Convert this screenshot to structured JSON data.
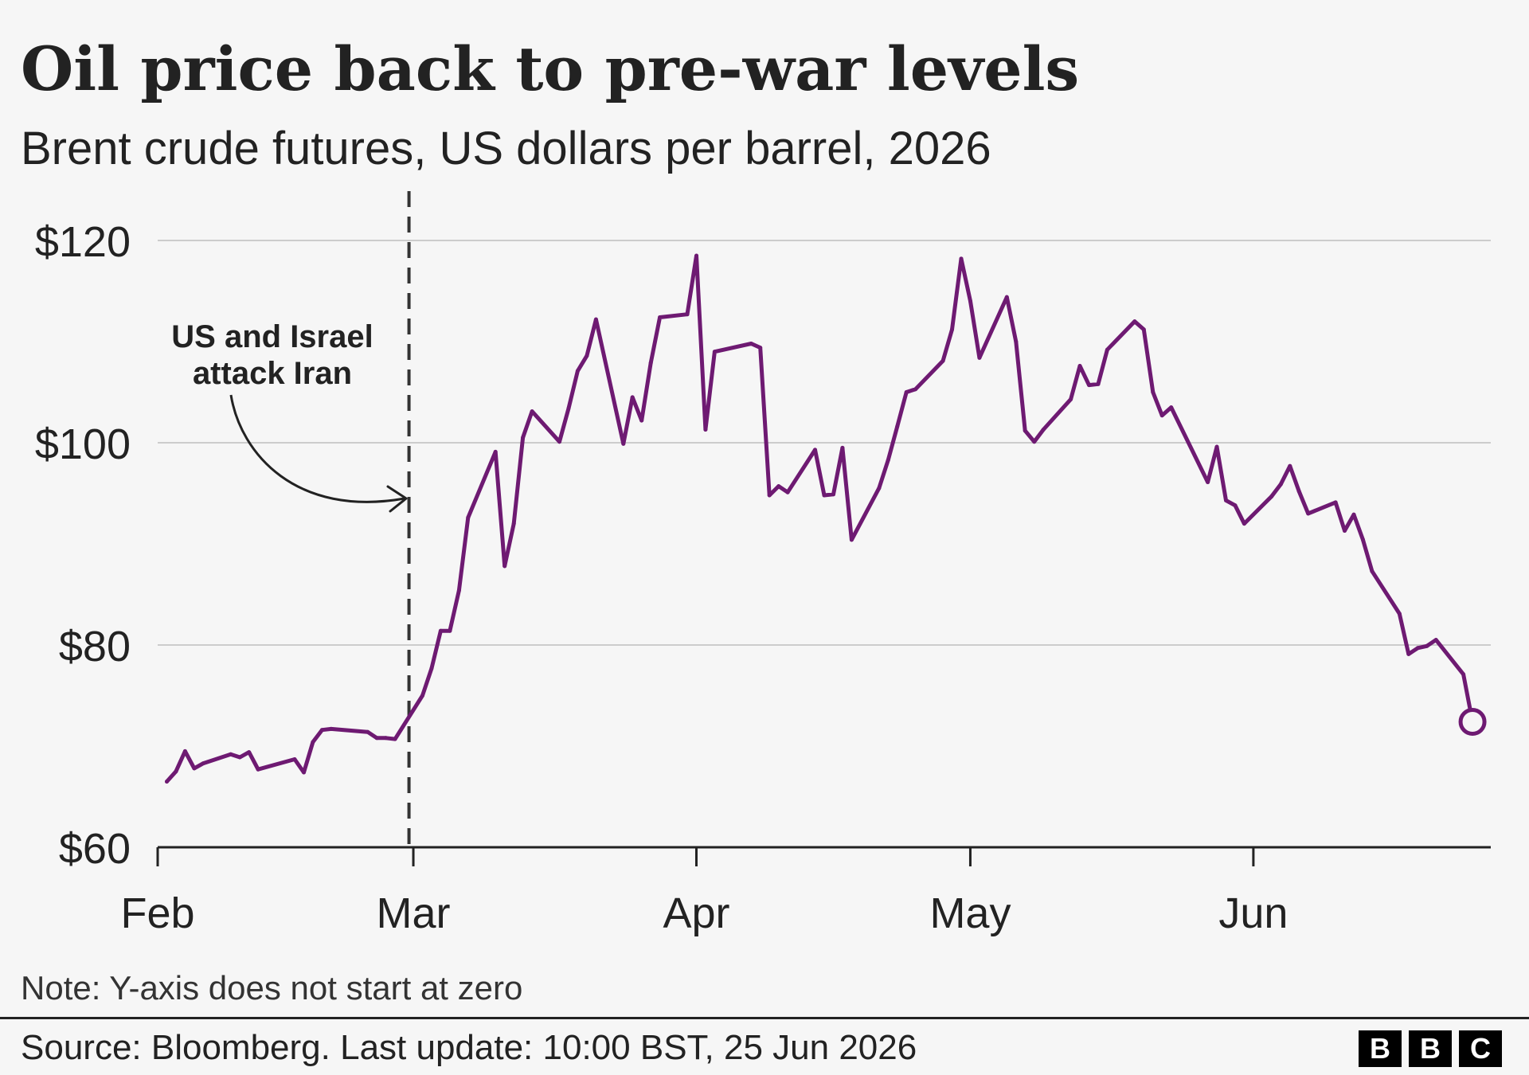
{
  "chart_data": {
    "type": "line",
    "title": "Oil price back to pre-war levels",
    "subtitle": "Brent crude futures, US dollars per barrel, 2026",
    "xlabel": "",
    "ylabel": "",
    "ylim": [
      60,
      120
    ],
    "yticks": [
      {
        "value": 120,
        "label": "$120"
      },
      {
        "value": 100,
        "label": "$100"
      },
      {
        "value": 80,
        "label": "$80"
      },
      {
        "value": 60,
        "label": "$60"
      }
    ],
    "xlim": [
      "2026-02-01",
      "2026-06-27"
    ],
    "xticks": [
      {
        "date": "2026-02-01",
        "label": "Feb"
      },
      {
        "date": "2026-03-01",
        "label": "Mar"
      },
      {
        "date": "2026-04-01",
        "label": "Apr"
      },
      {
        "date": "2026-05-01",
        "label": "May"
      },
      {
        "date": "2026-06-01",
        "label": "Jun"
      }
    ],
    "grid": true,
    "series": [
      {
        "color": "#6e1a72",
        "end_marker": "open-circle",
        "points": [
          [
            "2026-02-02",
            66.5
          ],
          [
            "2026-02-03",
            67.5
          ],
          [
            "2026-02-04",
            69.5
          ],
          [
            "2026-02-05",
            67.8
          ],
          [
            "2026-02-06",
            68.3
          ],
          [
            "2026-02-09",
            69.2
          ],
          [
            "2026-02-10",
            68.9
          ],
          [
            "2026-02-11",
            69.4
          ],
          [
            "2026-02-12",
            67.7
          ],
          [
            "2026-02-16",
            68.7
          ],
          [
            "2026-02-17",
            67.4
          ],
          [
            "2026-02-18",
            70.4
          ],
          [
            "2026-02-19",
            71.6
          ],
          [
            "2026-02-20",
            71.7
          ],
          [
            "2026-02-24",
            71.4
          ],
          [
            "2026-02-25",
            70.8
          ],
          [
            "2026-02-26",
            70.8
          ],
          [
            "2026-02-27",
            70.7
          ],
          [
            "2026-03-02",
            75.0
          ],
          [
            "2026-03-03",
            77.7
          ],
          [
            "2026-03-04",
            81.4
          ],
          [
            "2026-03-05",
            81.4
          ],
          [
            "2026-03-06",
            85.4
          ],
          [
            "2026-03-07",
            92.6
          ],
          [
            "2026-03-10",
            99.1
          ],
          [
            "2026-03-11",
            87.8
          ],
          [
            "2026-03-12",
            92.0
          ],
          [
            "2026-03-13",
            100.5
          ],
          [
            "2026-03-14",
            103.1
          ],
          [
            "2026-03-17",
            100.1
          ],
          [
            "2026-03-18",
            103.4
          ],
          [
            "2026-03-19",
            107.1
          ],
          [
            "2026-03-20",
            108.6
          ],
          [
            "2026-03-21",
            112.2
          ],
          [
            "2026-03-24",
            99.9
          ],
          [
            "2026-03-25",
            104.5
          ],
          [
            "2026-03-26",
            102.2
          ],
          [
            "2026-03-27",
            107.9
          ],
          [
            "2026-03-28",
            112.4
          ],
          [
            "2026-03-31",
            112.7
          ],
          [
            "2026-04-01",
            118.5
          ],
          [
            "2026-04-02",
            101.3
          ],
          [
            "2026-04-03",
            109.0
          ],
          [
            "2026-04-07",
            109.8
          ],
          [
            "2026-04-08",
            109.4
          ],
          [
            "2026-04-09",
            94.8
          ],
          [
            "2026-04-10",
            95.7
          ],
          [
            "2026-04-11",
            95.1
          ],
          [
            "2026-04-14",
            99.3
          ],
          [
            "2026-04-15",
            94.8
          ],
          [
            "2026-04-16",
            94.9
          ],
          [
            "2026-04-17",
            99.5
          ],
          [
            "2026-04-18",
            90.4
          ],
          [
            "2026-04-21",
            95.5
          ],
          [
            "2026-04-22",
            98.3
          ],
          [
            "2026-04-23",
            101.6
          ],
          [
            "2026-04-24",
            105.0
          ],
          [
            "2026-04-25",
            105.3
          ],
          [
            "2026-04-28",
            108.1
          ],
          [
            "2026-04-29",
            111.2
          ],
          [
            "2026-04-30",
            118.2
          ],
          [
            "2026-05-01",
            114.0
          ],
          [
            "2026-05-02",
            108.4
          ],
          [
            "2026-05-05",
            114.4
          ],
          [
            "2026-05-06",
            110.0
          ],
          [
            "2026-05-07",
            101.2
          ],
          [
            "2026-05-08",
            100.1
          ],
          [
            "2026-05-09",
            101.3
          ],
          [
            "2026-05-12",
            104.3
          ],
          [
            "2026-05-13",
            107.6
          ],
          [
            "2026-05-14",
            105.7
          ],
          [
            "2026-05-15",
            105.8
          ],
          [
            "2026-05-16",
            109.2
          ],
          [
            "2026-05-19",
            112.0
          ],
          [
            "2026-05-20",
            111.2
          ],
          [
            "2026-05-21",
            105.0
          ],
          [
            "2026-05-22",
            102.7
          ],
          [
            "2026-05-23",
            103.5
          ],
          [
            "2026-05-27",
            96.1
          ],
          [
            "2026-05-28",
            99.6
          ],
          [
            "2026-05-29",
            94.3
          ],
          [
            "2026-05-30",
            93.8
          ],
          [
            "2026-05-31",
            92.0
          ],
          [
            "2026-06-03",
            94.7
          ],
          [
            "2026-06-04",
            95.9
          ],
          [
            "2026-06-05",
            97.7
          ],
          [
            "2026-06-06",
            95.2
          ],
          [
            "2026-06-07",
            93.0
          ],
          [
            "2026-06-10",
            94.1
          ],
          [
            "2026-06-11",
            91.3
          ],
          [
            "2026-06-12",
            92.9
          ],
          [
            "2026-06-13",
            90.4
          ],
          [
            "2026-06-14",
            87.3
          ],
          [
            "2026-06-17",
            83.1
          ],
          [
            "2026-06-18",
            79.1
          ],
          [
            "2026-06-19",
            79.7
          ],
          [
            "2026-06-20",
            79.9
          ],
          [
            "2026-06-21",
            80.5
          ],
          [
            "2026-06-24",
            77.1
          ],
          [
            "2026-06-25",
            72.4
          ]
        ]
      }
    ],
    "annotations": [
      {
        "date": "2026-02-28",
        "style": "dashed-vertical-line",
        "text_lines": [
          "US and Israel",
          "attack Iran"
        ]
      }
    ]
  },
  "note": "Note: Y-axis does not start at zero",
  "source": "Source: Bloomberg. Last update: 10:00 BST, 25 Jun 2026",
  "logo": {
    "letters": [
      "B",
      "B",
      "C"
    ]
  }
}
